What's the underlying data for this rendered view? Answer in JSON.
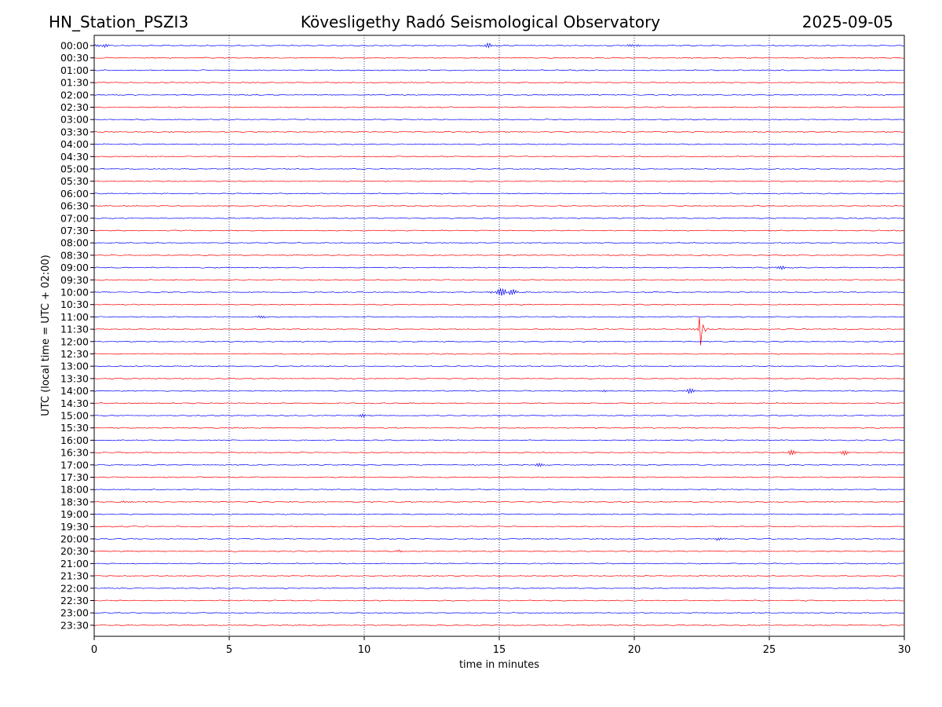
{
  "header": {
    "station": "HN_Station_PSZI3",
    "observatory": "Kövesligethy Radó Seismological Observatory",
    "date": "2025-09-05"
  },
  "chart_data": {
    "type": "line",
    "title": "Kövesligethy Radó Seismological Observatory",
    "xlabel": "time in minutes",
    "ylabel": "UTC (local time = UTC + 02:00)",
    "xlim": [
      0,
      30
    ],
    "xticks": [
      0,
      5,
      10,
      15,
      20,
      25,
      30
    ],
    "grid": "vertical dotted lines at every 5 minutes",
    "row_labels": [
      "00:00",
      "00:30",
      "01:00",
      "01:30",
      "02:00",
      "02:30",
      "03:00",
      "03:30",
      "04:00",
      "04:30",
      "05:00",
      "05:30",
      "06:00",
      "06:30",
      "07:00",
      "07:30",
      "08:00",
      "08:30",
      "09:00",
      "09:30",
      "10:00",
      "10:30",
      "11:00",
      "11:30",
      "12:00",
      "12:30",
      "13:00",
      "13:30",
      "14:00",
      "14:30",
      "15:00",
      "15:30",
      "16:00",
      "16:30",
      "17:00",
      "17:30",
      "18:00",
      "18:30",
      "19:00",
      "19:30",
      "20:00",
      "20:30",
      "21:00",
      "21:30",
      "22:00",
      "22:30",
      "23:00",
      "23:30"
    ],
    "trace_colors": [
      "#0000ff",
      "#ff0000"
    ],
    "grid_color": "#000080",
    "events": [
      {
        "row": "00:00",
        "t": 0.3,
        "amp": 3
      },
      {
        "row": "00:00",
        "t": 14.6,
        "amp": 2.5
      },
      {
        "row": "00:00",
        "t": 20.0,
        "amp": 2
      },
      {
        "row": "09:00",
        "t": 25.5,
        "amp": 2
      },
      {
        "row": "10:00",
        "t": 15.2,
        "amp": 5
      },
      {
        "row": "11:00",
        "t": 6.3,
        "amp": 2
      },
      {
        "row": "11:30",
        "t": 22.45,
        "amp": 26
      },
      {
        "row": "14:00",
        "t": 22.0,
        "amp": 3
      },
      {
        "row": "14:00",
        "t": 19.0,
        "amp": 1.5
      },
      {
        "row": "15:00",
        "t": 10.0,
        "amp": 2
      },
      {
        "row": "16:30",
        "t": 25.8,
        "amp": 3
      },
      {
        "row": "16:30",
        "t": 27.8,
        "amp": 2.5
      },
      {
        "row": "17:00",
        "t": 16.5,
        "amp": 2
      },
      {
        "row": "18:30",
        "t": 1.2,
        "amp": 1.5
      },
      {
        "row": "20:00",
        "t": 23.2,
        "amp": 2
      },
      {
        "row": "20:30",
        "t": 11.2,
        "amp": 1.5
      }
    ]
  }
}
